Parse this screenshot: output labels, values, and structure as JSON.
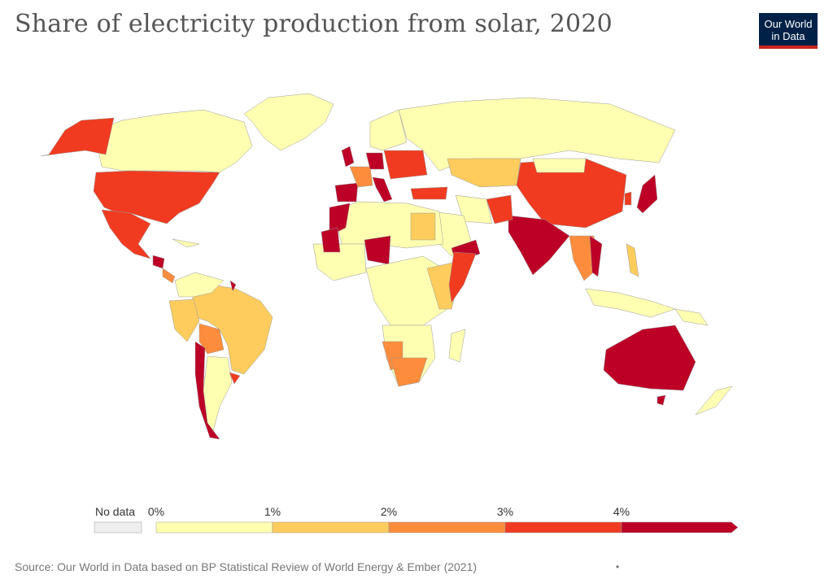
{
  "header": {
    "title": "Share of electricity production from solar, 2020",
    "logo_line1": "Our World",
    "logo_line2": "in Data"
  },
  "legend": {
    "no_data_label": "No data",
    "ticks": [
      "0%",
      "1%",
      "2%",
      "3%",
      "4%"
    ],
    "colors": [
      "#ffffb2",
      "#fdcc5c",
      "#fd8d3c",
      "#f03b20",
      "#bd0026"
    ],
    "no_data_color": "#eeeeee"
  },
  "footer": {
    "source": "Source: Our World in Data based on BP Statistical Review of World Energy & Ember (2021)",
    "dot": "•"
  }
}
